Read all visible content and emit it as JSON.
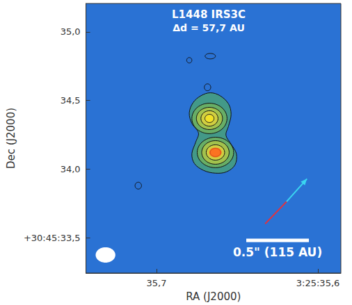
{
  "chart_data": {
    "type": "contour",
    "title": "L1448 IRS3C",
    "subtitle": "Δd = 57,7 AU",
    "x_label": "RA (J2000)",
    "y_label": "Dec (J2000)",
    "color": "#2a72d4",
    "grid": false,
    "xlim": [
      35.7437,
      35.5858
    ],
    "ylim": [
      33.242,
      35.207
    ],
    "xticks": [
      {
        "value": 35.7,
        "label": "35,7"
      },
      {
        "value": 35.6,
        "label": "3:25:35,6"
      }
    ],
    "yticks": [
      {
        "value": 33.5,
        "label": "+30:45:33,5"
      },
      {
        "value": 34.0,
        "label": "34,0"
      },
      {
        "value": 34.5,
        "label": "34,5"
      },
      {
        "value": 35.0,
        "label": "35,0"
      }
    ],
    "contour_polygons": [
      {
        "ra": [
          35.6667,
          35.6607,
          35.6554,
          35.6538,
          35.6554,
          35.657,
          35.6538,
          35.6505,
          35.6514,
          35.6566,
          35.6635,
          35.6708,
          35.6765,
          35.6781,
          35.6757,
          35.674,
          35.6781,
          35.6797,
          35.6773,
          35.6724
        ],
        "dec": [
          34.556,
          34.535,
          34.475,
          34.399,
          34.313,
          34.247,
          34.182,
          34.111,
          34.03,
          33.98,
          33.97,
          33.99,
          34.04,
          34.111,
          34.197,
          34.263,
          34.333,
          34.409,
          34.485,
          34.535
        ]
      }
    ],
    "contour_ellipses": [
      {
        "ra": 35.6672,
        "dec": 34.369,
        "dra": [
          0.0109,
          0.0081,
          0.0053,
          0.0028
        ],
        "ddec": [
          0.111,
          0.081,
          0.056,
          0.03
        ]
      },
      {
        "ra": 35.6635,
        "dec": 34.121,
        "dra": [
          0.0113,
          0.0085,
          0.0057,
          0.0032
        ],
        "ddec": [
          0.111,
          0.086,
          0.056,
          0.03
        ]
      },
      {
        "ra": 35.6797,
        "dec": 34.793,
        "dra": [
          0.0016
        ],
        "ddec": [
          0.02
        ]
      },
      {
        "ra": 35.6667,
        "dec": 34.823,
        "dra": [
          0.0032
        ],
        "ddec": [
          0.02
        ]
      },
      {
        "ra": 35.6684,
        "dec": 34.596,
        "dra": [
          0.002
        ],
        "ddec": [
          0.025
        ]
      },
      {
        "ra": 35.7113,
        "dec": 33.879,
        "dra": [
          0.002
        ],
        "ddec": [
          0.025
        ]
      }
    ],
    "peaks": [
      {
        "ra": 35.6672,
        "dec": 34.369,
        "color": "#f2e422"
      },
      {
        "ra": 35.6635,
        "dec": 34.121,
        "color": "#ff5a1a"
      }
    ],
    "outflow": [
      {
        "color": "#e8303a",
        "ra": [
          35.6327,
          35.6194
        ],
        "dec": [
          33.601,
          33.763
        ]
      },
      {
        "color": "#3ad6f0",
        "ra": [
          35.6194,
          35.6068
        ],
        "dec": [
          33.763,
          33.929
        ]
      }
    ],
    "scale_bar": {
      "label": "0.5\" (115 AU)",
      "ra": [
        35.6444,
        35.6056
      ],
      "dec": 33.48
    },
    "beam": {
      "ra": 35.7316,
      "dec": 33.374,
      "dra": 0.0061,
      "ddec": 0.056
    }
  }
}
